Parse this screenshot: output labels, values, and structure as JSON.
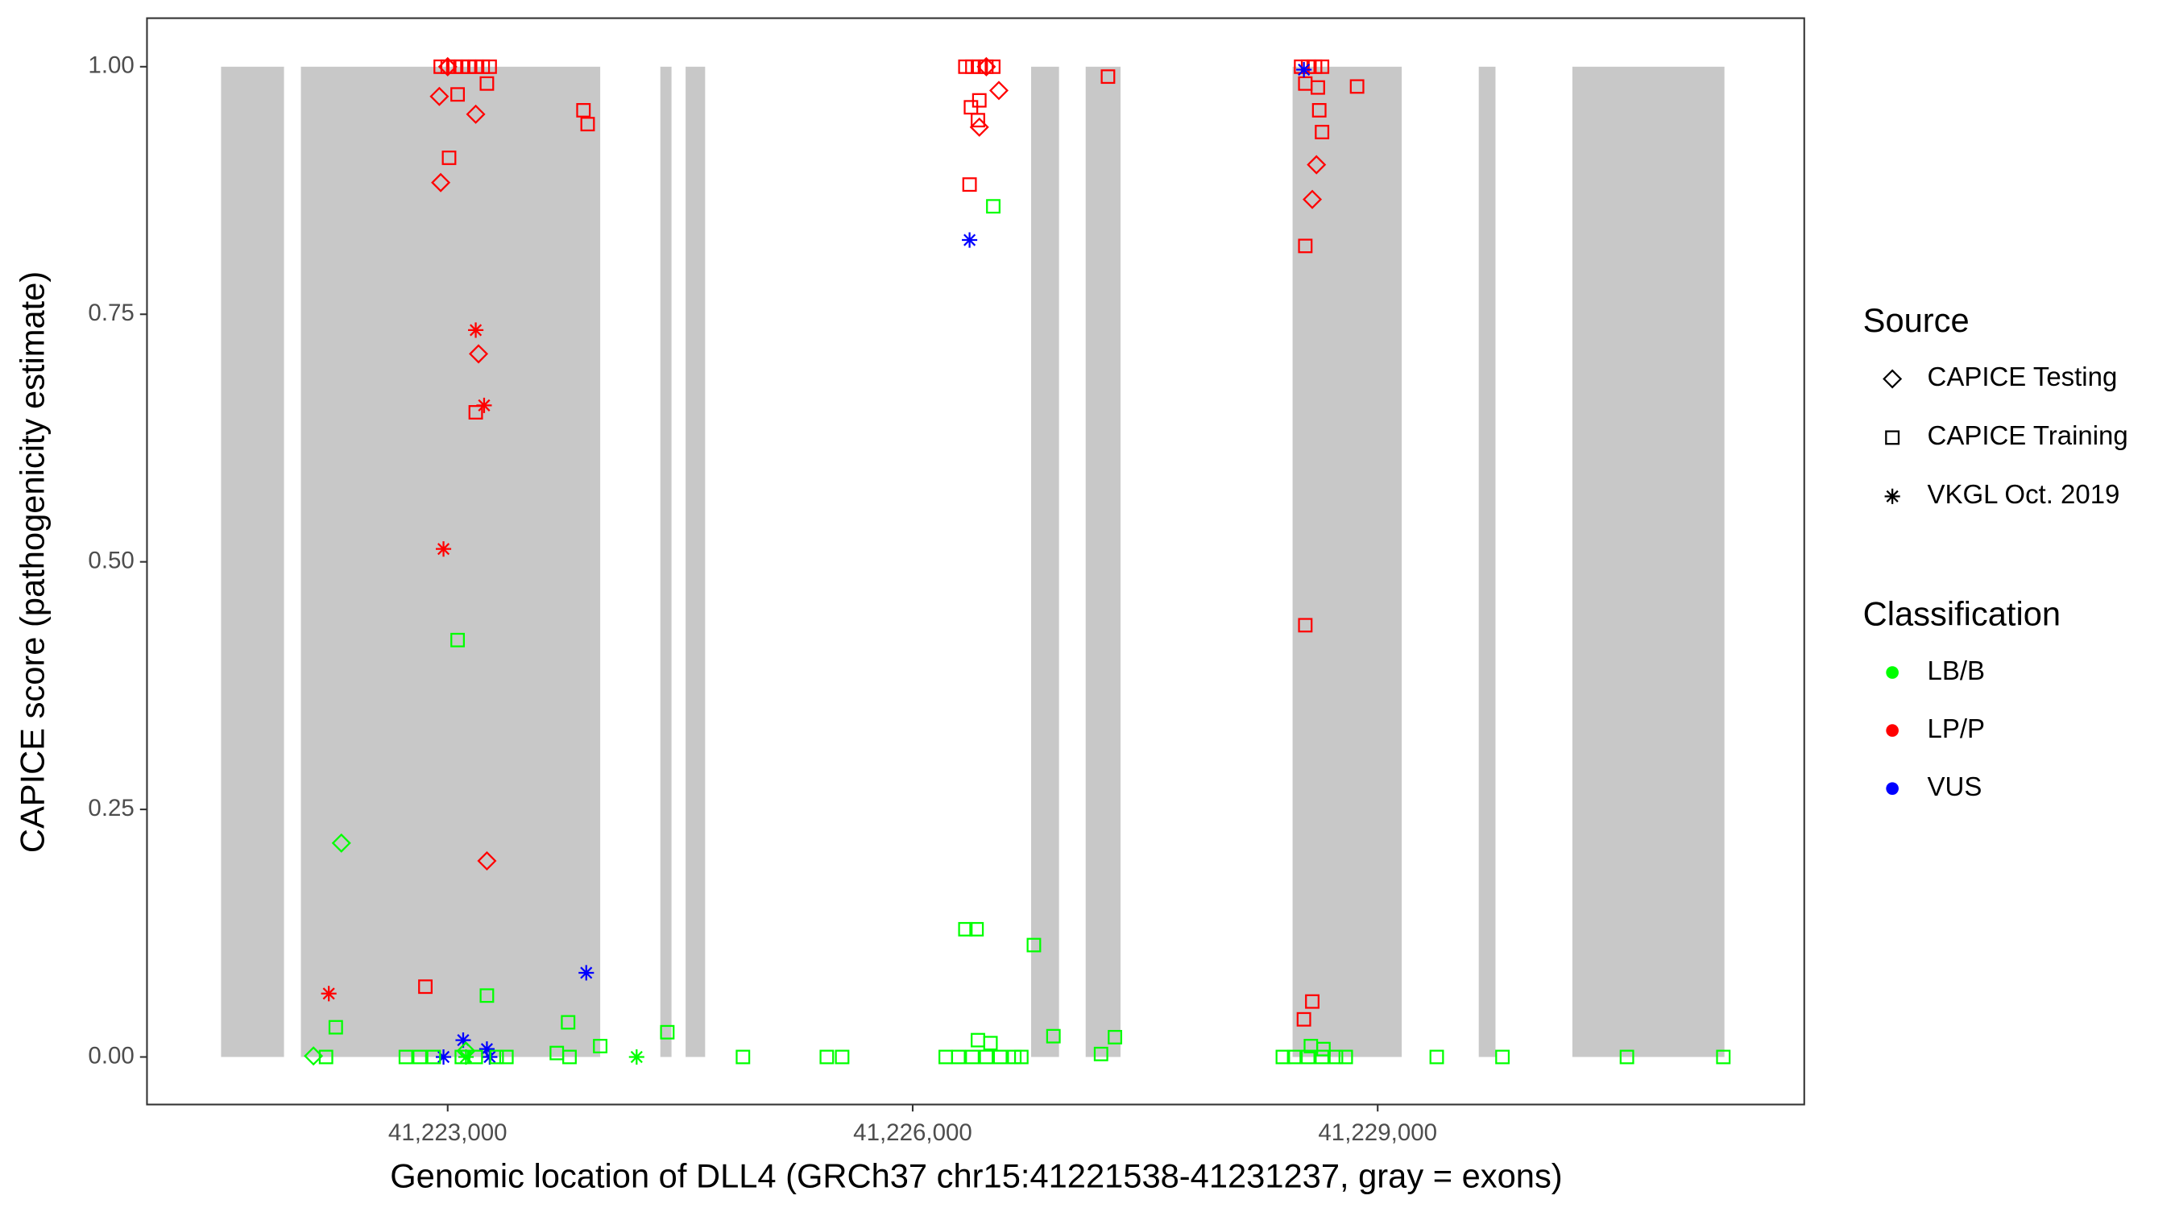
{
  "chart_data": {
    "type": "scatter",
    "x_label": "Genomic location of DLL4 (GRCh37 chr15:41221538-41231237, gray = exons)",
    "y_label": "CAPICE score (pathogenicity estimate)",
    "xlim": [
      41221060,
      41231752
    ],
    "ylim": [
      -0.048,
      1.049
    ],
    "xticks": [
      {
        "value": 41223000,
        "label": "41,223,000"
      },
      {
        "value": 41226000,
        "label": "41,226,000"
      },
      {
        "value": 41229000,
        "label": "41,229,000"
      }
    ],
    "yticks": [
      {
        "value": 0,
        "label": "0.00"
      },
      {
        "value": 0.25,
        "label": "0.25"
      },
      {
        "value": 0.5,
        "label": "0.50"
      },
      {
        "value": 0.75,
        "label": "0.75"
      },
      {
        "value": 1,
        "label": "1.00"
      }
    ],
    "exons": {
      "color": "#c8c8c8",
      "ranges": [
        [
          41221538,
          41221944
        ],
        [
          41222053,
          41223984
        ],
        [
          41224372,
          41224444
        ],
        [
          41224535,
          41224661
        ],
        [
          41226764,
          41226944
        ],
        [
          41227116,
          41227341
        ],
        [
          41228451,
          41229155
        ],
        [
          41229652,
          41229760
        ],
        [
          41230256,
          41231237
        ]
      ]
    },
    "shape_legend": {
      "title": "Source",
      "items": [
        {
          "name": "CAPICE Testing",
          "shape": "diamond"
        },
        {
          "name": "CAPICE Training",
          "shape": "square"
        },
        {
          "name": "VKGL Oct. 2019",
          "shape": "asterisk"
        }
      ]
    },
    "color_legend": {
      "title": "Classification",
      "items": [
        {
          "name": "LB/B",
          "color": "#00ff00"
        },
        {
          "name": "LP/P",
          "color": "#ff0000"
        },
        {
          "name": "VUS",
          "color": "#0000ff"
        }
      ]
    },
    "series": [
      {
        "shape": "square",
        "color": "#ff0000",
        "x": [
          41222955,
          41223000,
          41223046,
          41223091,
          41223136,
          41223181,
          41223226,
          41223271,
          41223064,
          41223009,
          41223181,
          41223253,
          41223876,
          41223903,
          41222856,
          41226340,
          41226385,
          41226430,
          41226475,
          41226520,
          41226376,
          41226421,
          41226430,
          41226367,
          41227260,
          41228506,
          41228551,
          41228596,
          41228641,
          41228533,
          41228614,
          41228623,
          41228641,
          41228533,
          41228533,
          41228867,
          41228578,
          41228524
        ],
        "y": [
          1.0,
          1.0,
          1.0,
          1.0,
          1.0,
          1.0,
          1.0,
          1.0,
          0.972,
          0.908,
          0.651,
          0.983,
          0.956,
          0.942,
          0.071,
          1.0,
          1.0,
          1.0,
          1.0,
          1.0,
          0.959,
          0.946,
          0.966,
          0.881,
          0.99,
          1.0,
          1.0,
          1.0,
          1.0,
          0.983,
          0.979,
          0.956,
          0.934,
          0.819,
          0.436,
          0.98,
          0.056,
          0.038
        ]
      },
      {
        "shape": "diamond",
        "color": "#ff0000",
        "x": [
          41222946,
          41223181,
          41222955,
          41223199,
          41223253,
          41226430,
          41226556,
          41228605,
          41228578,
          41223000,
          41226475
        ],
        "y": [
          0.97,
          0.952,
          0.883,
          0.71,
          0.198,
          0.939,
          0.976,
          0.901,
          0.866,
          1.0,
          1.0
        ]
      },
      {
        "shape": "asterisk",
        "color": "#ff0000",
        "x": [
          41223181,
          41223235,
          41222973,
          41222233
        ],
        "y": [
          0.734,
          0.658,
          0.513,
          0.064
        ]
      },
      {
        "shape": "asterisk",
        "color": "#0000ff",
        "x": [
          41226367,
          41228524,
          41223894,
          41223100,
          41222973,
          41223253,
          41223271
        ],
        "y": [
          0.825,
          0.997,
          0.085,
          0.017,
          0,
          0.008,
          0
        ]
      },
      {
        "shape": "square",
        "color": "#00ff00",
        "x": [
          41223064,
          41223253,
          41222278,
          41223777,
          41223984,
          41222215,
          41222730,
          41222820,
          41222910,
          41223091,
          41223181,
          41223316,
          41223379,
          41223704,
          41223786,
          41224417,
          41224905,
          41225446,
          41225545,
          41226340,
          41226412,
          41226520,
          41226782,
          41226908,
          41227305,
          41227215,
          41226421,
          41226502,
          41226213,
          41226295,
          41226385,
          41226475,
          41226565,
          41226656,
          41226701,
          41228388,
          41228461,
          41228551,
          41228641,
          41228731,
          41228794,
          41228569,
          41228650,
          41229381,
          41229805,
          41230608,
          41231230
        ],
        "y": [
          0.421,
          0.062,
          0.03,
          0.035,
          0.011,
          0,
          0,
          0,
          0,
          0,
          0,
          0,
          0,
          0.004,
          0,
          0.025,
          0,
          0,
          0,
          0.129,
          0.129,
          0.859,
          0.113,
          0.021,
          0.02,
          0.003,
          0.017,
          0.014,
          0,
          0,
          0,
          0,
          0,
          0,
          0,
          0,
          0,
          0,
          0,
          0,
          0,
          0.011,
          0.008,
          0,
          0,
          0,
          0
        ]
      },
      {
        "shape": "diamond",
        "color": "#00ff00",
        "x": [
          41222314,
          41222134,
          41223118
        ],
        "y": [
          0.216,
          0.001,
          0.006
        ]
      },
      {
        "shape": "asterisk",
        "color": "#00ff00",
        "x": [
          41224219,
          41223118
        ],
        "y": [
          0,
          0
        ]
      }
    ]
  }
}
